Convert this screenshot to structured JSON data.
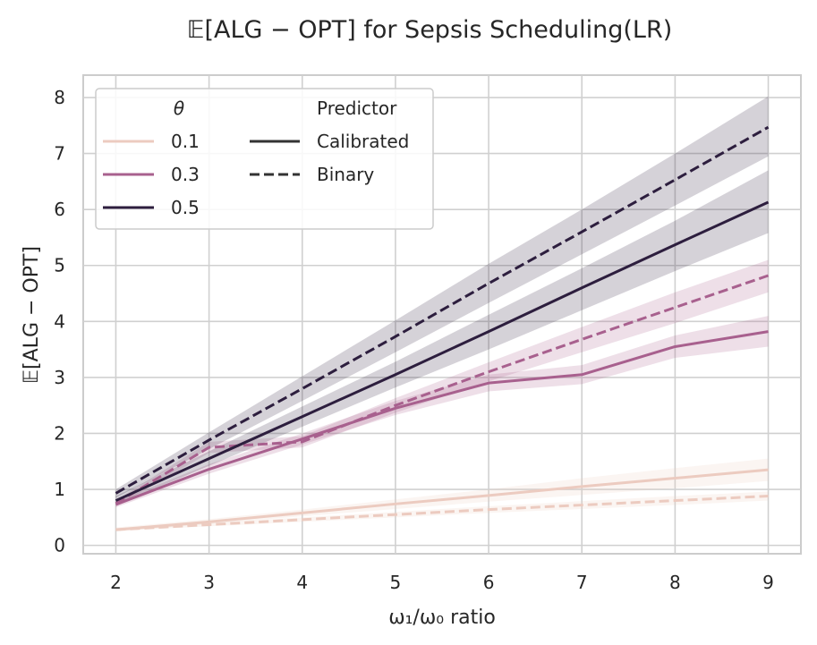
{
  "chart_data": {
    "type": "line",
    "title": "𝔼[ALG − OPT] for Sepsis Scheduling(LR)",
    "xlabel": "ω₁/ω₀ ratio",
    "ylabel": "𝔼[ALG − OPT]",
    "x": [
      2,
      3,
      4,
      5,
      6,
      7,
      8,
      9
    ],
    "xlim": [
      1.65,
      9.35
    ],
    "ylim": [
      -0.15,
      8.4
    ],
    "xticks": [
      "2",
      "3",
      "4",
      "5",
      "6",
      "7",
      "8",
      "9"
    ],
    "yticks": [
      "0",
      "1",
      "2",
      "3",
      "4",
      "5",
      "6",
      "7",
      "8"
    ],
    "grid": true,
    "legend": {
      "placement": "top-left",
      "hue_title": "θ",
      "style_title": "Predictor",
      "hue_entries": [
        {
          "label": "0.1",
          "color": "#eccbc0"
        },
        {
          "label": "0.3",
          "color": "#a8608e"
        },
        {
          "label": "0.5",
          "color": "#2d1e3e"
        }
      ],
      "style_entries": [
        {
          "label": "Calibrated",
          "dash": "solid"
        },
        {
          "label": "Binary",
          "dash": "dashed"
        }
      ]
    },
    "series": [
      {
        "name": "0.1 Calibrated",
        "theta": "0.1",
        "predictor": "Calibrated",
        "color": "#eccbc0",
        "dash": "solid",
        "values": [
          0.28,
          0.42,
          0.58,
          0.74,
          0.89,
          1.05,
          1.2,
          1.35
        ],
        "ci_low": [
          0.25,
          0.38,
          0.52,
          0.65,
          0.78,
          0.9,
          1.02,
          1.15
        ],
        "ci_high": [
          0.32,
          0.47,
          0.64,
          0.82,
          1.0,
          1.2,
          1.38,
          1.55
        ]
      },
      {
        "name": "0.1 Binary",
        "theta": "0.1",
        "predictor": "Binary",
        "color": "#eccbc0",
        "dash": "dashed",
        "values": [
          0.28,
          0.37,
          0.46,
          0.55,
          0.64,
          0.72,
          0.8,
          0.88
        ],
        "ci_low": [
          0.26,
          0.34,
          0.42,
          0.5,
          0.58,
          0.65,
          0.72,
          0.8
        ],
        "ci_high": [
          0.31,
          0.4,
          0.5,
          0.6,
          0.7,
          0.79,
          0.88,
          0.96
        ]
      },
      {
        "name": "0.3 Calibrated",
        "theta": "0.3",
        "predictor": "Calibrated",
        "color": "#a8608e",
        "dash": "solid",
        "values": [
          0.73,
          1.36,
          1.9,
          2.45,
          2.9,
          3.05,
          3.55,
          3.82
        ],
        "ci_low": [
          0.68,
          1.28,
          1.8,
          2.33,
          2.75,
          2.88,
          3.35,
          3.55
        ],
        "ci_high": [
          0.78,
          1.45,
          2.0,
          2.58,
          3.05,
          3.22,
          3.75,
          4.1
        ]
      },
      {
        "name": "0.3 Binary",
        "theta": "0.3",
        "predictor": "Binary",
        "color": "#a8608e",
        "dash": "dashed",
        "values": [
          0.75,
          1.75,
          1.85,
          2.5,
          3.1,
          3.68,
          4.25,
          4.82
        ],
        "ci_low": [
          0.7,
          1.65,
          1.75,
          2.37,
          2.93,
          3.45,
          3.97,
          4.52
        ],
        "ci_high": [
          0.8,
          1.85,
          1.95,
          2.63,
          3.27,
          3.9,
          4.52,
          5.1
        ]
      },
      {
        "name": "0.5 Calibrated",
        "theta": "0.5",
        "predictor": "Calibrated",
        "color": "#2d1e3e",
        "dash": "solid",
        "values": [
          0.8,
          1.55,
          2.3,
          3.05,
          3.82,
          4.6,
          5.37,
          6.13
        ],
        "ci_low": [
          0.72,
          1.42,
          2.12,
          2.82,
          3.5,
          4.2,
          4.9,
          5.58
        ],
        "ci_high": [
          0.88,
          1.68,
          2.48,
          3.28,
          4.12,
          4.95,
          5.8,
          6.7
        ]
      },
      {
        "name": "0.5 Binary",
        "theta": "0.5",
        "predictor": "Binary",
        "color": "#2d1e3e",
        "dash": "dashed",
        "values": [
          0.93,
          1.88,
          2.8,
          3.73,
          4.68,
          5.6,
          6.53,
          7.47
        ],
        "ci_low": [
          0.85,
          1.72,
          2.58,
          3.45,
          4.33,
          5.2,
          6.07,
          6.95
        ],
        "ci_high": [
          1.0,
          2.02,
          3.02,
          4.02,
          5.03,
          6.0,
          7.0,
          8.02
        ]
      }
    ]
  }
}
